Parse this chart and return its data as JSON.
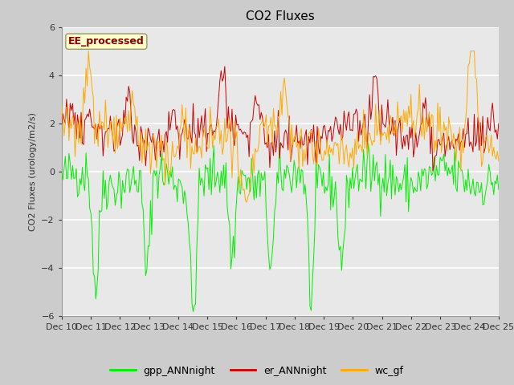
{
  "title": "CO2 Fluxes",
  "ylabel": "CO2 Fluxes (urology/m2/s)",
  "ylim": [
    -6,
    6
  ],
  "yticks": [
    -6,
    -4,
    -2,
    0,
    2,
    4,
    6
  ],
  "n_points": 360,
  "gpp_color": "#00ee00",
  "er_color": "#cc0000",
  "wc_color": "#ffaa00",
  "fig_bg_color": "#cccccc",
  "plot_bg_color": "#e8e8e8",
  "annotation_text": "EE_processed",
  "annotation_color": "#8b0000",
  "annotation_bg": "#ffffcc",
  "legend_labels": [
    "gpp_ANNnight",
    "er_ANNnight",
    "wc_gf"
  ],
  "xtick_labels": [
    "Dec 10",
    "Dec 11",
    "Dec 12",
    "Dec 13",
    "Dec 14",
    "Dec 15",
    "Dec 16",
    "Dec 17",
    "Dec 18",
    "Dec 19",
    "Dec 20",
    "Dec 21",
    "Dec 22",
    "Dec 23",
    "Dec 24",
    "Dec 25"
  ],
  "font_size": 8,
  "title_font_size": 11
}
